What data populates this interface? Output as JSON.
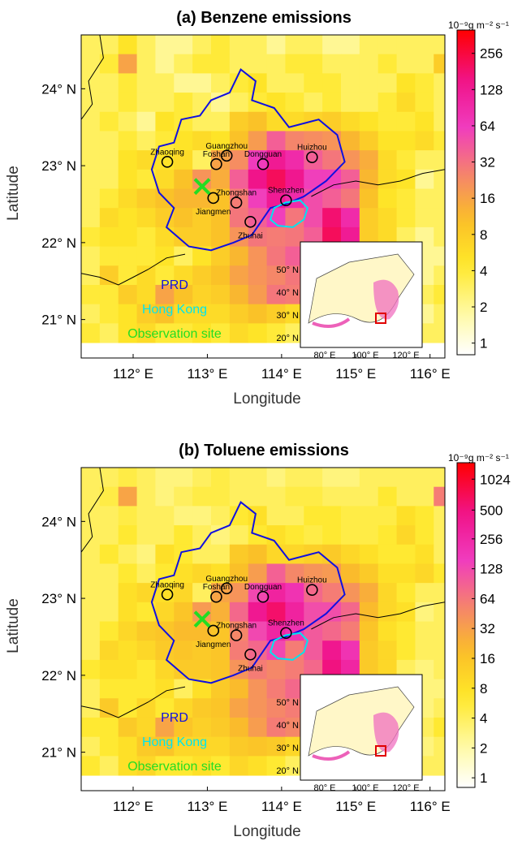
{
  "colors": {
    "prd_boundary": "#1010e0",
    "hongkong": "#00e5ee",
    "observation_site": "#22dd22",
    "city_marker": "#000000",
    "inset_box": "#e00000"
  },
  "chart_data": [
    {
      "type": "heatmap",
      "title": "(a) Benzene emissions",
      "xlabel": "Longitude",
      "ylabel": "Latitude",
      "xlim": [
        111.3,
        116.2
      ],
      "ylim": [
        20.5,
        24.7
      ],
      "xticks": [
        "112° E",
        "113° E",
        "114° E",
        "115° E",
        "116° E"
      ],
      "xtick_values": [
        112,
        113,
        114,
        115,
        116
      ],
      "yticks": [
        "21° N",
        "22° N",
        "23° N",
        "24° N"
      ],
      "ytick_values": [
        21,
        22,
        23,
        24
      ],
      "colorbar": {
        "unit": "10⁻⁹g m⁻² s⁻¹",
        "scale": "log",
        "ticks": [
          "1",
          "2",
          "4",
          "8",
          "16",
          "32",
          "64",
          "128",
          "256"
        ],
        "tick_values": [
          1,
          2,
          4,
          8,
          16,
          32,
          64,
          128,
          256
        ],
        "range": [
          0.8,
          400
        ]
      },
      "grid": {
        "lon0": 111.3,
        "lat_top": 24.7,
        "dlon": 0.25,
        "dlat": 0.25,
        "values": [
          [
            3,
            3,
            5,
            3,
            2,
            2,
            3,
            4,
            3,
            3,
            2,
            3,
            3,
            2,
            2,
            3,
            3,
            3,
            3,
            3
          ],
          [
            3,
            4,
            16,
            3,
            2,
            3,
            4,
            4,
            3,
            3,
            3,
            4,
            4,
            3,
            3,
            3,
            4,
            3,
            3,
            8
          ],
          [
            3,
            3,
            4,
            3,
            3,
            2,
            2,
            3,
            4,
            5,
            3,
            3,
            4,
            4,
            3,
            3,
            3,
            5,
            4,
            3
          ],
          [
            3,
            3,
            4,
            3,
            3,
            4,
            3,
            2,
            3,
            4,
            5,
            4,
            3,
            4,
            3,
            3,
            4,
            6,
            4,
            3
          ],
          [
            3,
            4,
            3,
            2,
            5,
            4,
            3,
            3,
            8,
            10,
            6,
            6,
            7,
            8,
            6,
            5,
            4,
            4,
            5,
            3
          ],
          [
            3,
            3,
            4,
            3,
            4,
            5,
            6,
            5,
            10,
            18,
            40,
            25,
            22,
            20,
            12,
            8,
            5,
            5,
            6,
            4
          ],
          [
            3,
            3,
            5,
            6,
            5,
            6,
            3,
            16,
            22,
            64,
            130,
            90,
            40,
            30,
            20,
            14,
            6,
            4,
            3,
            3
          ],
          [
            3,
            3,
            5,
            4,
            6,
            10,
            20,
            14,
            40,
            150,
            210,
            140,
            60,
            60,
            40,
            12,
            6,
            5,
            2,
            3
          ],
          [
            3,
            4,
            6,
            8,
            10,
            12,
            12,
            10,
            28,
            60,
            128,
            90,
            50,
            40,
            30,
            10,
            5,
            4,
            3,
            3
          ],
          [
            3,
            6,
            5,
            6,
            8,
            10,
            8,
            10,
            30,
            40,
            60,
            30,
            50,
            180,
            90,
            8,
            6,
            4,
            3,
            3
          ],
          [
            4,
            5,
            5,
            4,
            6,
            8,
            8,
            10,
            20,
            30,
            28,
            30,
            40,
            210,
            128,
            8,
            6,
            3,
            2,
            3
          ],
          [
            3,
            4,
            4,
            4,
            5,
            3,
            5,
            8,
            12,
            20,
            30,
            40,
            30,
            16,
            14,
            4,
            3,
            2,
            2,
            2
          ],
          [
            3,
            8,
            4,
            6,
            4,
            6,
            8,
            10,
            16,
            20,
            24,
            30,
            30,
            12,
            6,
            3,
            2,
            3,
            2,
            3
          ],
          [
            4,
            4,
            8,
            6,
            16,
            10,
            7,
            8,
            12,
            18,
            30,
            28,
            16,
            16,
            4,
            3,
            2,
            2,
            3,
            4
          ],
          [
            3,
            4,
            5,
            8,
            10,
            6,
            6,
            6,
            8,
            10,
            8,
            6,
            4,
            3,
            4,
            3,
            3,
            3,
            2,
            3
          ],
          [
            4,
            3,
            5,
            6,
            4,
            4,
            5,
            4,
            6,
            5,
            4,
            3,
            3,
            3,
            3,
            3,
            3,
            3,
            3,
            3
          ]
        ]
      },
      "cities": [
        {
          "name": "Guangzhou",
          "lon": 113.26,
          "lat": 23.13
        },
        {
          "name": "Huizhou",
          "lon": 114.41,
          "lat": 23.11
        },
        {
          "name": "Zhaoqing",
          "lon": 112.46,
          "lat": 23.05
        },
        {
          "name": "Dongguan",
          "lon": 113.75,
          "lat": 23.02
        },
        {
          "name": "Foshan",
          "lon": 113.12,
          "lat": 23.02
        },
        {
          "name": "Shenzhen",
          "lon": 114.06,
          "lat": 22.55
        },
        {
          "name": "Jiangmen",
          "lon": 113.08,
          "lat": 22.58
        },
        {
          "name": "Zhongshan",
          "lon": 113.39,
          "lat": 22.52
        },
        {
          "name": "Zhuhai",
          "lon": 113.58,
          "lat": 22.27
        }
      ],
      "observation_site": {
        "lon": 112.93,
        "lat": 22.73
      },
      "legend": [
        {
          "label": "PRD",
          "color": "#1010e0"
        },
        {
          "label": "Hong Kong",
          "color": "#00e5ee"
        },
        {
          "label": "Observation site",
          "color": "#22dd22"
        }
      ],
      "inset": {
        "xticks": [
          "80° E",
          "100° E",
          "120° E"
        ],
        "yticks": [
          "20° N",
          "30° N",
          "40° N",
          "50° N"
        ]
      }
    },
    {
      "type": "heatmap",
      "title": "(b) Toluene emissions",
      "xlabel": "Longitude",
      "ylabel": "Latitude",
      "xlim": [
        111.3,
        116.2
      ],
      "ylim": [
        20.5,
        24.7
      ],
      "xticks": [
        "112° E",
        "113° E",
        "114° E",
        "115° E",
        "116° E"
      ],
      "xtick_values": [
        112,
        113,
        114,
        115,
        116
      ],
      "yticks": [
        "21° N",
        "22° N",
        "23° N",
        "24° N"
      ],
      "ytick_values": [
        21,
        22,
        23,
        24
      ],
      "colorbar": {
        "unit": "10⁻⁹g m⁻² s⁻¹",
        "scale": "log",
        "ticks": [
          "1",
          "2",
          "4",
          "8",
          "16",
          "32",
          "64",
          "128",
          "256",
          "500",
          "1024"
        ],
        "tick_values": [
          1,
          2,
          4,
          8,
          16,
          32,
          64,
          128,
          256,
          500,
          1024
        ],
        "range": [
          0.8,
          1500
        ]
      },
      "grid": {
        "lon0": 111.3,
        "lat_top": 24.7,
        "dlon": 0.25,
        "dlat": 0.25,
        "values": [
          [
            4,
            4,
            5,
            4,
            3,
            3,
            4,
            5,
            4,
            4,
            3,
            4,
            4,
            3,
            3,
            4,
            4,
            4,
            4,
            4
          ],
          [
            4,
            5,
            30,
            4,
            3,
            4,
            5,
            5,
            4,
            4,
            4,
            5,
            5,
            4,
            4,
            4,
            6,
            4,
            4,
            60
          ],
          [
            4,
            4,
            5,
            4,
            4,
            3,
            3,
            4,
            6,
            8,
            4,
            4,
            6,
            6,
            5,
            5,
            5,
            8,
            6,
            4
          ],
          [
            4,
            4,
            6,
            4,
            4,
            6,
            4,
            3,
            4,
            6,
            8,
            6,
            5,
            6,
            5,
            5,
            6,
            10,
            6,
            4
          ],
          [
            4,
            6,
            4,
            3,
            8,
            6,
            4,
            4,
            14,
            18,
            10,
            10,
            12,
            14,
            10,
            8,
            6,
            6,
            8,
            4
          ],
          [
            4,
            4,
            6,
            4,
            6,
            8,
            10,
            8,
            18,
            34,
            90,
            50,
            40,
            36,
            20,
            14,
            8,
            8,
            10,
            6
          ],
          [
            4,
            4,
            8,
            10,
            8,
            10,
            4,
            30,
            40,
            130,
            300,
            200,
            80,
            60,
            40,
            25,
            10,
            6,
            4,
            4
          ],
          [
            4,
            4,
            8,
            6,
            10,
            16,
            36,
            24,
            80,
            400,
            600,
            300,
            120,
            120,
            80,
            20,
            10,
            8,
            3,
            4
          ],
          [
            4,
            6,
            10,
            14,
            16,
            20,
            20,
            16,
            50,
            130,
            280,
            200,
            100,
            80,
            60,
            16,
            8,
            6,
            4,
            4
          ],
          [
            4,
            10,
            8,
            10,
            14,
            16,
            14,
            16,
            60,
            80,
            130,
            60,
            100,
            420,
            200,
            14,
            10,
            6,
            4,
            4
          ],
          [
            6,
            8,
            8,
            6,
            10,
            14,
            14,
            16,
            40,
            60,
            50,
            60,
            80,
            500,
            280,
            14,
            10,
            4,
            3,
            4
          ],
          [
            4,
            6,
            6,
            6,
            8,
            4,
            8,
            14,
            20,
            40,
            60,
            80,
            60,
            30,
            24,
            6,
            4,
            3,
            3,
            3
          ],
          [
            4,
            14,
            6,
            10,
            6,
            10,
            14,
            16,
            30,
            40,
            50,
            60,
            60,
            20,
            10,
            4,
            3,
            4,
            3,
            4
          ],
          [
            6,
            6,
            14,
            10,
            30,
            16,
            12,
            14,
            20,
            34,
            60,
            50,
            30,
            30,
            6,
            4,
            3,
            3,
            4,
            6
          ],
          [
            4,
            6,
            8,
            14,
            16,
            10,
            10,
            10,
            14,
            16,
            14,
            10,
            6,
            4,
            6,
            4,
            4,
            4,
            3,
            4
          ],
          [
            6,
            4,
            8,
            10,
            6,
            6,
            8,
            6,
            10,
            8,
            6,
            4,
            4,
            4,
            4,
            4,
            4,
            4,
            4,
            4
          ]
        ]
      },
      "cities": [
        {
          "name": "Guangzhou",
          "lon": 113.26,
          "lat": 23.13
        },
        {
          "name": "Huizhou",
          "lon": 114.41,
          "lat": 23.11
        },
        {
          "name": "Zhaoqing",
          "lon": 112.46,
          "lat": 23.05
        },
        {
          "name": "Dongguan",
          "lon": 113.75,
          "lat": 23.02
        },
        {
          "name": "Foshan",
          "lon": 113.12,
          "lat": 23.02
        },
        {
          "name": "Shenzhen",
          "lon": 114.06,
          "lat": 22.55
        },
        {
          "name": "Jiangmen",
          "lon": 113.08,
          "lat": 22.58
        },
        {
          "name": "Zhongshan",
          "lon": 113.39,
          "lat": 22.52
        },
        {
          "name": "Zhuhai",
          "lon": 113.58,
          "lat": 22.27
        }
      ],
      "observation_site": {
        "lon": 112.93,
        "lat": 22.73
      },
      "legend": [
        {
          "label": "PRD",
          "color": "#1010e0"
        },
        {
          "label": "Hong Kong",
          "color": "#00e5ee"
        },
        {
          "label": "Observation site",
          "color": "#22dd22"
        }
      ],
      "inset": {
        "xticks": [
          "80° E",
          "100° E",
          "120° E"
        ],
        "yticks": [
          "20° N",
          "30° N",
          "40° N",
          "50° N"
        ]
      }
    }
  ]
}
